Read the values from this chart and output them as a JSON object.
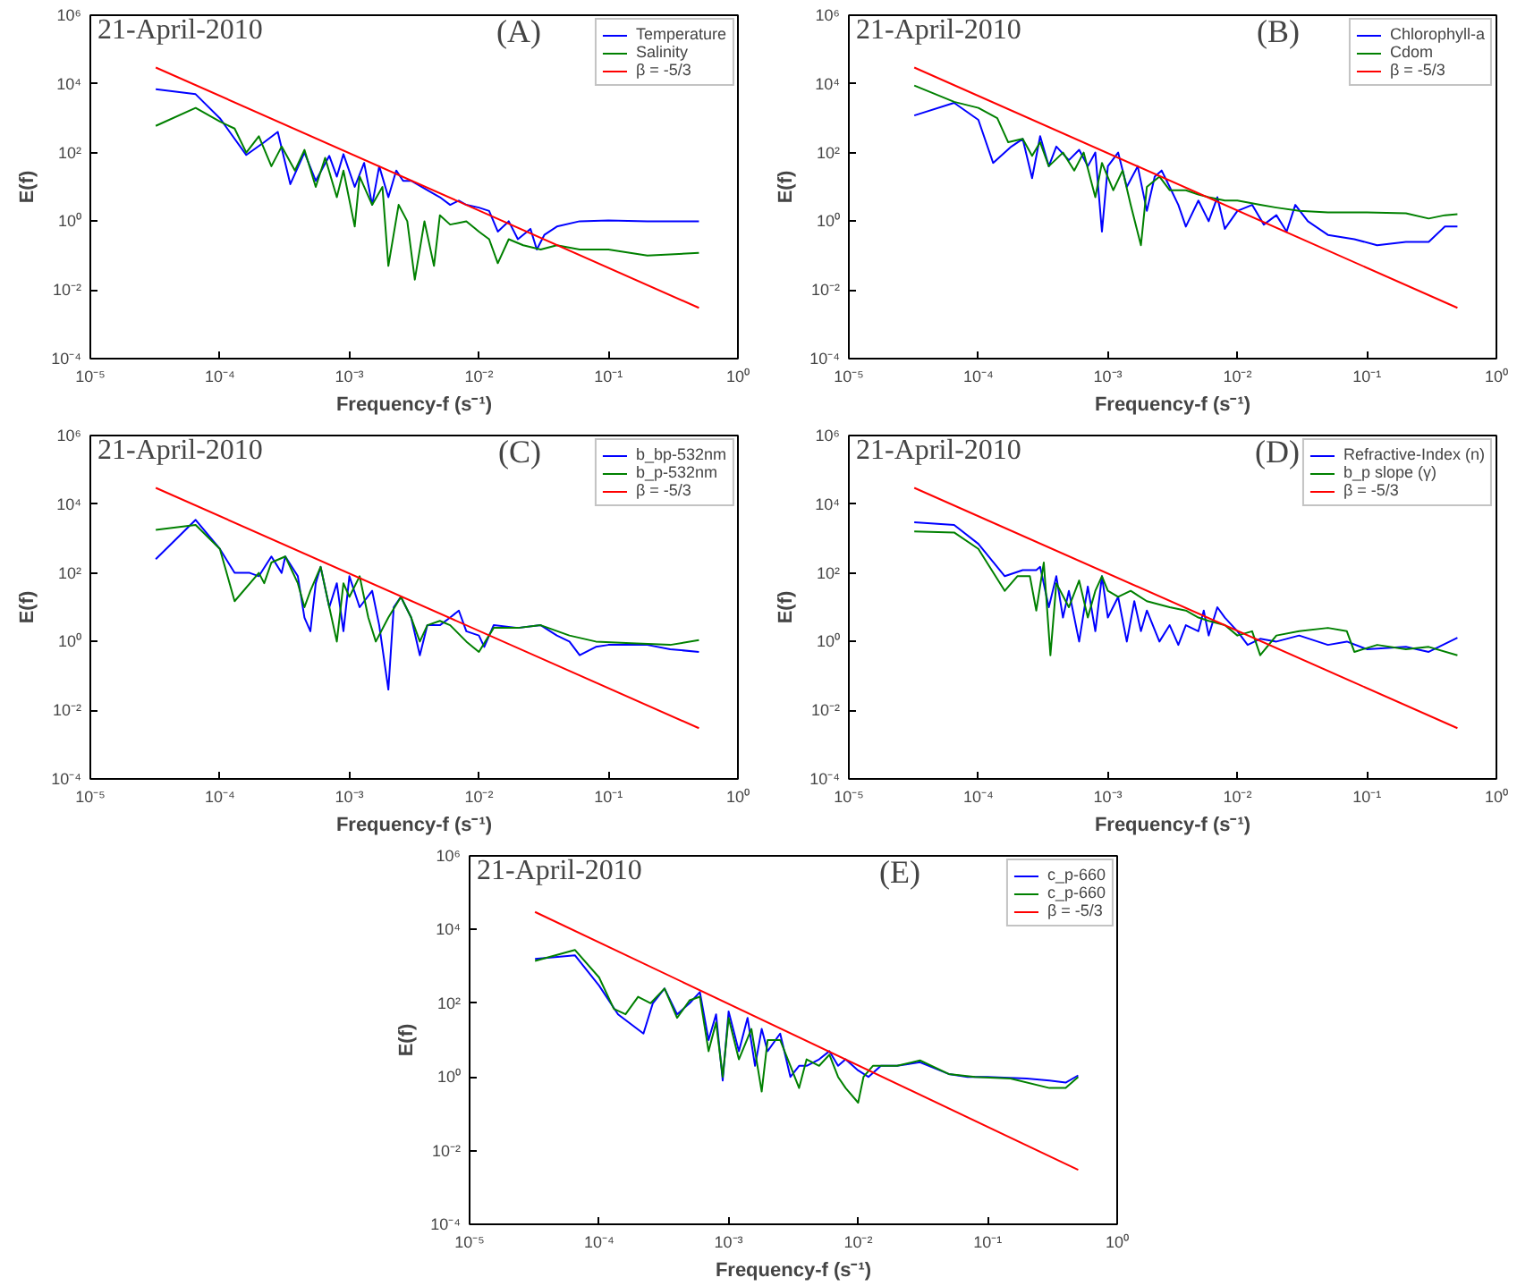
{
  "chart_data": [
    {
      "type": "line",
      "annotations": [
        "21-April-2010",
        "(A)"
      ],
      "xlabel": "Frequency-f (s⁻¹)",
      "ylabel": "E(f)",
      "log": "xy",
      "grid": false,
      "legend": "top right",
      "xlim": [
        1e-05,
        1
      ],
      "ylim": [
        0.0001,
        1000000.0
      ],
      "xticks": [
        {
          "value": 1e-05,
          "label": "10⁻⁵"
        },
        {
          "value": 0.0001,
          "label": "10⁻⁴"
        },
        {
          "value": 0.001,
          "label": "10⁻³"
        },
        {
          "value": 0.01,
          "label": "10⁻²"
        },
        {
          "value": 0.1,
          "label": "10⁻¹"
        },
        {
          "value": 1,
          "label": "10⁰"
        }
      ],
      "yticks": [
        {
          "value": 0.0001,
          "label": "10⁻⁴"
        },
        {
          "value": 0.01,
          "label": "10⁻²"
        },
        {
          "value": 1,
          "label": "10⁰"
        },
        {
          "value": 100,
          "label": "10²"
        },
        {
          "value": 10000.0,
          "label": "10⁴"
        },
        {
          "value": 1000000.0,
          "label": "10⁶"
        }
      ],
      "series": [
        {
          "name": "Temperature",
          "color": "#0000ff",
          "x": [
            3.2e-05,
            6.5e-05,
            0.0001,
            0.00016,
            0.00022,
            0.00028,
            0.00035,
            0.00045,
            0.00055,
            0.0007,
            0.0008,
            0.0009,
            0.0011,
            0.0013,
            0.0015,
            0.0017,
            0.002,
            0.0023,
            0.0026,
            0.003,
            0.004,
            0.005,
            0.006,
            0.007,
            0.008,
            0.01,
            0.012,
            0.014,
            0.017,
            0.02,
            0.025,
            0.028,
            0.032,
            0.04,
            0.06,
            0.1,
            0.2,
            0.5
          ],
          "values": [
            7000,
            5000,
            1000,
            85,
            200,
            400,
            12,
            100,
            15,
            80,
            20,
            90,
            10,
            50,
            3,
            40,
            5,
            30,
            15,
            15,
            8,
            5,
            3,
            4,
            3,
            2.5,
            2,
            0.5,
            1,
            0.3,
            0.6,
            0.15,
            0.4,
            0.7,
            1,
            1.05,
            1,
            1
          ]
        },
        {
          "name": "Salinity",
          "color": "#008000",
          "x": [
            3.2e-05,
            6.5e-05,
            0.0001,
            0.00013,
            0.00016,
            0.0002,
            0.00025,
            0.0003,
            0.00038,
            0.00045,
            0.00055,
            0.00065,
            0.0008,
            0.0009,
            0.0011,
            0.0012,
            0.0015,
            0.0018,
            0.002,
            0.0024,
            0.0028,
            0.0032,
            0.0038,
            0.0045,
            0.005,
            0.006,
            0.008,
            0.01,
            0.012,
            0.014,
            0.017,
            0.022,
            0.03,
            0.04,
            0.06,
            0.1,
            0.2,
            0.5
          ],
          "values": [
            600,
            2000,
            800,
            500,
            100,
            300,
            40,
            150,
            30,
            120,
            10,
            70,
            5,
            30,
            0.7,
            20,
            3,
            10,
            0.05,
            3,
            1,
            0.02,
            1,
            0.05,
            1.5,
            0.8,
            1,
            0.5,
            0.3,
            0.06,
            0.3,
            0.2,
            0.15,
            0.2,
            0.15,
            0.15,
            0.1,
            0.12
          ]
        },
        {
          "name": "β = -5/3",
          "color": "#ff0000",
          "x": [
            3.2e-05,
            0.5
          ],
          "values": [
            30000,
            0.003
          ]
        }
      ]
    },
    {
      "type": "line",
      "annotations": [
        "21-April-2010",
        "(B)"
      ],
      "xlabel": "Frequency-f (s⁻¹)",
      "ylabel": "E(f)",
      "log": "xy",
      "grid": false,
      "legend": "top right",
      "xlim": [
        1e-05,
        1
      ],
      "ylim": [
        0.0001,
        1000000.0
      ],
      "xticks": [
        {
          "value": 1e-05,
          "label": "10⁻⁵"
        },
        {
          "value": 0.0001,
          "label": "10⁻⁴"
        },
        {
          "value": 0.001,
          "label": "10⁻³"
        },
        {
          "value": 0.01,
          "label": "10⁻²"
        },
        {
          "value": 0.1,
          "label": "10⁻¹"
        },
        {
          "value": 1,
          "label": "10⁰"
        }
      ],
      "yticks": [
        {
          "value": 0.0001,
          "label": "10⁻⁴"
        },
        {
          "value": 0.01,
          "label": "10⁻²"
        },
        {
          "value": 1,
          "label": "10⁰"
        },
        {
          "value": 100,
          "label": "10²"
        },
        {
          "value": 10000.0,
          "label": "10⁴"
        },
        {
          "value": 1000000.0,
          "label": "10⁶"
        }
      ],
      "series": [
        {
          "name": "Chlorophyll-a",
          "color": "#0000ff",
          "x": [
            3.2e-05,
            6.5e-05,
            0.0001,
            0.00013,
            0.00018,
            0.00022,
            0.00026,
            0.0003,
            0.00035,
            0.0004,
            0.0005,
            0.0006,
            0.0007,
            0.0008,
            0.0009,
            0.001,
            0.0012,
            0.0014,
            0.0017,
            0.002,
            0.0023,
            0.0026,
            0.003,
            0.0035,
            0.004,
            0.005,
            0.006,
            0.007,
            0.008,
            0.01,
            0.013,
            0.016,
            0.02,
            0.024,
            0.028,
            0.035,
            0.05,
            0.08,
            0.12,
            0.2,
            0.3,
            0.4,
            0.5
          ],
          "values": [
            1200,
            2800,
            900,
            50,
            150,
            250,
            18,
            300,
            40,
            150,
            60,
            120,
            40,
            100,
            0.5,
            40,
            100,
            10,
            40,
            2,
            20,
            30,
            10,
            3,
            0.7,
            4,
            1,
            5,
            0.6,
            2,
            3,
            0.8,
            1.5,
            0.5,
            3,
            1,
            0.4,
            0.3,
            0.2,
            0.25,
            0.25,
            0.7,
            0.7
          ]
        },
        {
          "name": "Cdom",
          "color": "#008000",
          "x": [
            3.2e-05,
            6.5e-05,
            0.0001,
            0.00014,
            0.00017,
            0.00022,
            0.00026,
            0.0003,
            0.00035,
            0.00045,
            0.00055,
            0.00065,
            0.0008,
            0.0009,
            0.0011,
            0.0013,
            0.0015,
            0.0018,
            0.002,
            0.0025,
            0.003,
            0.004,
            0.005,
            0.006,
            0.008,
            0.01,
            0.015,
            0.02,
            0.03,
            0.05,
            0.1,
            0.2,
            0.3,
            0.4,
            0.5
          ],
          "values": [
            9000,
            3000,
            2000,
            1000,
            200,
            250,
            80,
            200,
            40,
            100,
            30,
            100,
            5,
            50,
            8,
            30,
            3,
            0.2,
            10,
            20,
            8,
            8,
            6,
            5,
            4,
            4,
            3,
            2.5,
            2,
            1.8,
            1.8,
            1.7,
            1.2,
            1.5,
            1.6
          ]
        },
        {
          "name": "β = -5/3",
          "color": "#ff0000",
          "x": [
            3.2e-05,
            0.5
          ],
          "values": [
            30000,
            0.003
          ]
        }
      ]
    },
    {
      "type": "line",
      "annotations": [
        "21-April-2010",
        "(C)"
      ],
      "xlabel": "Frequency-f (s⁻¹)",
      "ylabel": "E(f)",
      "log": "xy",
      "grid": false,
      "legend": "top right",
      "xlim": [
        1e-05,
        1
      ],
      "ylim": [
        0.0001,
        1000000.0
      ],
      "xticks": [
        {
          "value": 1e-05,
          "label": "10⁻⁵"
        },
        {
          "value": 0.0001,
          "label": "10⁻⁴"
        },
        {
          "value": 0.001,
          "label": "10⁻³"
        },
        {
          "value": 0.01,
          "label": "10⁻²"
        },
        {
          "value": 0.1,
          "label": "10⁻¹"
        },
        {
          "value": 1,
          "label": "10⁰"
        }
      ],
      "yticks": [
        {
          "value": 0.0001,
          "label": "10⁻⁴"
        },
        {
          "value": 0.01,
          "label": "10⁻²"
        },
        {
          "value": 1,
          "label": "10⁰"
        },
        {
          "value": 100,
          "label": "10²"
        },
        {
          "value": 10000.0,
          "label": "10⁴"
        },
        {
          "value": 1000000.0,
          "label": "10⁶"
        }
      ],
      "series": [
        {
          "name": "b_bp-532nm",
          "color": "#0000ff",
          "x": [
            3.2e-05,
            6.5e-05,
            0.0001,
            0.00013,
            0.00017,
            0.0002,
            0.00025,
            0.0003,
            0.00032,
            0.0004,
            0.00045,
            0.0005,
            0.00055,
            0.0006,
            0.0007,
            0.0008,
            0.0009,
            0.001,
            0.0012,
            0.0015,
            0.0017,
            0.002,
            0.0022,
            0.0025,
            0.003,
            0.0035,
            0.004,
            0.005,
            0.006,
            0.007,
            0.008,
            0.01,
            0.011,
            0.013,
            0.02,
            0.03,
            0.04,
            0.05,
            0.06,
            0.08,
            0.1,
            0.2,
            0.3,
            0.5
          ],
          "values": [
            250,
            3500,
            500,
            100,
            100,
            80,
            300,
            100,
            300,
            80,
            5,
            2,
            50,
            150,
            10,
            50,
            2,
            80,
            10,
            30,
            3,
            0.04,
            10,
            20,
            5,
            0.4,
            3,
            3,
            5,
            8,
            2,
            1.5,
            0.7,
            3,
            2.5,
            3,
            1.5,
            1,
            0.4,
            0.7,
            0.8,
            0.8,
            0.6,
            0.5
          ]
        },
        {
          "name": "b_p-532nm",
          "color": "#008000",
          "x": [
            3.2e-05,
            6.5e-05,
            0.0001,
            0.00013,
            0.0002,
            0.00022,
            0.00025,
            0.00032,
            0.0004,
            0.00045,
            0.0005,
            0.0006,
            0.0007,
            0.0008,
            0.0009,
            0.001,
            0.0012,
            0.0014,
            0.0016,
            0.002,
            0.0025,
            0.003,
            0.0035,
            0.004,
            0.005,
            0.006,
            0.008,
            0.01,
            0.013,
            0.02,
            0.03,
            0.05,
            0.08,
            0.15,
            0.3,
            0.5
          ],
          "values": [
            1800,
            2500,
            500,
            15,
            100,
            50,
            200,
            300,
            50,
            10,
            30,
            150,
            10,
            1,
            50,
            20,
            80,
            5,
            1,
            5,
            20,
            5,
            1,
            3,
            4,
            3,
            1,
            0.5,
            2.5,
            2.5,
            3,
            1.5,
            1,
            0.9,
            0.8,
            1.1
          ]
        },
        {
          "name": "β = -5/3",
          "color": "#ff0000",
          "x": [
            3.2e-05,
            0.5
          ],
          "values": [
            30000,
            0.003
          ]
        }
      ]
    },
    {
      "type": "line",
      "annotations": [
        "21-April-2010",
        "(D)"
      ],
      "xlabel": "Frequency-f (s⁻¹)",
      "ylabel": "E(f)",
      "log": "xy",
      "grid": false,
      "legend": "top right",
      "xlim": [
        1e-05,
        1
      ],
      "ylim": [
        0.0001,
        1000000.0
      ],
      "xticks": [
        {
          "value": 1e-05,
          "label": "10⁻⁵"
        },
        {
          "value": 0.0001,
          "label": "10⁻⁴"
        },
        {
          "value": 0.001,
          "label": "10⁻³"
        },
        {
          "value": 0.01,
          "label": "10⁻²"
        },
        {
          "value": 0.1,
          "label": "10⁻¹"
        },
        {
          "value": 1,
          "label": "10⁰"
        }
      ],
      "yticks": [
        {
          "value": 0.0001,
          "label": "10⁻⁴"
        },
        {
          "value": 0.01,
          "label": "10⁻²"
        },
        {
          "value": 1,
          "label": "10⁰"
        },
        {
          "value": 100,
          "label": "10²"
        },
        {
          "value": 10000.0,
          "label": "10⁴"
        },
        {
          "value": 1000000.0,
          "label": "10⁶"
        }
      ],
      "series": [
        {
          "name": "Refractive-Index (n)",
          "color": "#0000ff",
          "x": [
            3.2e-05,
            6.5e-05,
            0.0001,
            0.00016,
            0.00022,
            0.00028,
            0.0003,
            0.00035,
            0.0004,
            0.00045,
            0.0005,
            0.0006,
            0.0007,
            0.0008,
            0.0009,
            0.001,
            0.0012,
            0.0014,
            0.0016,
            0.0018,
            0.002,
            0.0025,
            0.003,
            0.0035,
            0.004,
            0.005,
            0.0055,
            0.006,
            0.007,
            0.008,
            0.01,
            0.012,
            0.015,
            0.02,
            0.03,
            0.05,
            0.07,
            0.1,
            0.2,
            0.3,
            0.5
          ],
          "values": [
            3000,
            2500,
            700,
            80,
            120,
            120,
            150,
            10,
            80,
            5,
            30,
            1,
            40,
            2,
            80,
            5,
            20,
            1,
            15,
            2,
            8,
            1,
            3,
            0.8,
            3,
            2,
            8,
            1.5,
            10,
            5,
            2,
            0.8,
            1.2,
            1,
            1.5,
            0.8,
            1,
            0.6,
            0.7,
            0.5,
            1.3
          ]
        },
        {
          "name": "b_p slope (γ)",
          "color": "#008000",
          "x": [
            3.2e-05,
            6.5e-05,
            0.0001,
            0.00016,
            0.0002,
            0.00025,
            0.00028,
            0.00032,
            0.00036,
            0.0004,
            0.0005,
            0.0006,
            0.0007,
            0.0008,
            0.0009,
            0.001,
            0.0012,
            0.0015,
            0.002,
            0.003,
            0.004,
            0.005,
            0.006,
            0.008,
            0.01,
            0.013,
            0.015,
            0.02,
            0.03,
            0.05,
            0.07,
            0.08,
            0.12,
            0.2,
            0.3,
            0.5
          ],
          "values": [
            1600,
            1500,
            500,
            30,
            80,
            80,
            8,
            200,
            0.4,
            50,
            10,
            60,
            5,
            30,
            80,
            30,
            20,
            30,
            15,
            10,
            8,
            5,
            4,
            3,
            1.5,
            2,
            0.4,
            1.5,
            2,
            2.5,
            2,
            0.5,
            0.8,
            0.6,
            0.7,
            0.4
          ]
        },
        {
          "name": "β = -5/3",
          "color": "#ff0000",
          "x": [
            3.2e-05,
            0.5
          ],
          "values": [
            30000,
            0.003
          ]
        }
      ]
    },
    {
      "type": "line",
      "annotations": [
        "21-April-2010",
        "(E)"
      ],
      "xlabel": "Frequency-f (s⁻¹)",
      "ylabel": "E(f)",
      "log": "xy",
      "grid": false,
      "legend": "top right",
      "xlim": [
        1e-05,
        1
      ],
      "ylim": [
        0.0001,
        1000000.0
      ],
      "xticks": [
        {
          "value": 1e-05,
          "label": "10⁻⁵"
        },
        {
          "value": 0.0001,
          "label": "10⁻⁴"
        },
        {
          "value": 0.001,
          "label": "10⁻³"
        },
        {
          "value": 0.01,
          "label": "10⁻²"
        },
        {
          "value": 0.1,
          "label": "10⁻¹"
        },
        {
          "value": 1,
          "label": "10⁰"
        }
      ],
      "yticks": [
        {
          "value": 0.0001,
          "label": "10⁻⁴"
        },
        {
          "value": 0.01,
          "label": "10⁻²"
        },
        {
          "value": 1,
          "label": "10⁰"
        },
        {
          "value": 100,
          "label": "10²"
        },
        {
          "value": 10000.0,
          "label": "10⁴"
        },
        {
          "value": 1000000.0,
          "label": "10⁶"
        }
      ],
      "series": [
        {
          "name": "c_p-660",
          "color": "#0000ff",
          "x": [
            3.2e-05,
            6.5e-05,
            0.0001,
            0.00014,
            0.00022,
            0.00026,
            0.00032,
            0.0004,
            0.0005,
            0.0006,
            0.0007,
            0.0008,
            0.0009,
            0.001,
            0.0012,
            0.0014,
            0.0016,
            0.0018,
            0.002,
            0.0025,
            0.003,
            0.0035,
            0.004,
            0.005,
            0.006,
            0.007,
            0.008,
            0.01,
            0.012,
            0.015,
            0.02,
            0.03,
            0.05,
            0.07,
            0.1,
            0.2,
            0.3,
            0.4,
            0.5
          ],
          "values": [
            1600,
            2000,
            300,
            50,
            15,
            100,
            250,
            50,
            100,
            200,
            10,
            50,
            0.8,
            60,
            5,
            40,
            2,
            20,
            5,
            15,
            1,
            2,
            2,
            3,
            5,
            2,
            3,
            1.5,
            1,
            2,
            2,
            2.5,
            1.2,
            1,
            1,
            0.9,
            0.8,
            0.7,
            1.1
          ]
        },
        {
          "name": "c_p-660",
          "color": "#008000",
          "x": [
            3.2e-05,
            6.5e-05,
            0.0001,
            0.00013,
            0.00016,
            0.0002,
            0.00025,
            0.00032,
            0.0004,
            0.0005,
            0.0006,
            0.0007,
            0.0008,
            0.0009,
            0.001,
            0.0012,
            0.0015,
            0.0018,
            0.002,
            0.0025,
            0.003,
            0.0035,
            0.004,
            0.005,
            0.006,
            0.007,
            0.008,
            0.01,
            0.011,
            0.013,
            0.02,
            0.03,
            0.05,
            0.08,
            0.15,
            0.3,
            0.4,
            0.5
          ],
          "values": [
            1400,
            2800,
            500,
            70,
            50,
            150,
            100,
            250,
            40,
            120,
            150,
            5,
            30,
            1,
            40,
            3,
            20,
            0.4,
            10,
            10,
            2,
            0.5,
            3,
            2,
            4,
            1,
            0.5,
            0.2,
            1,
            2,
            2,
            2.8,
            1.2,
            1,
            0.9,
            0.5,
            0.5,
            1
          ]
        },
        {
          "name": "β = -5/3",
          "color": "#ff0000",
          "x": [
            3.2e-05,
            0.5
          ],
          "values": [
            30000,
            0.003
          ]
        }
      ]
    }
  ]
}
